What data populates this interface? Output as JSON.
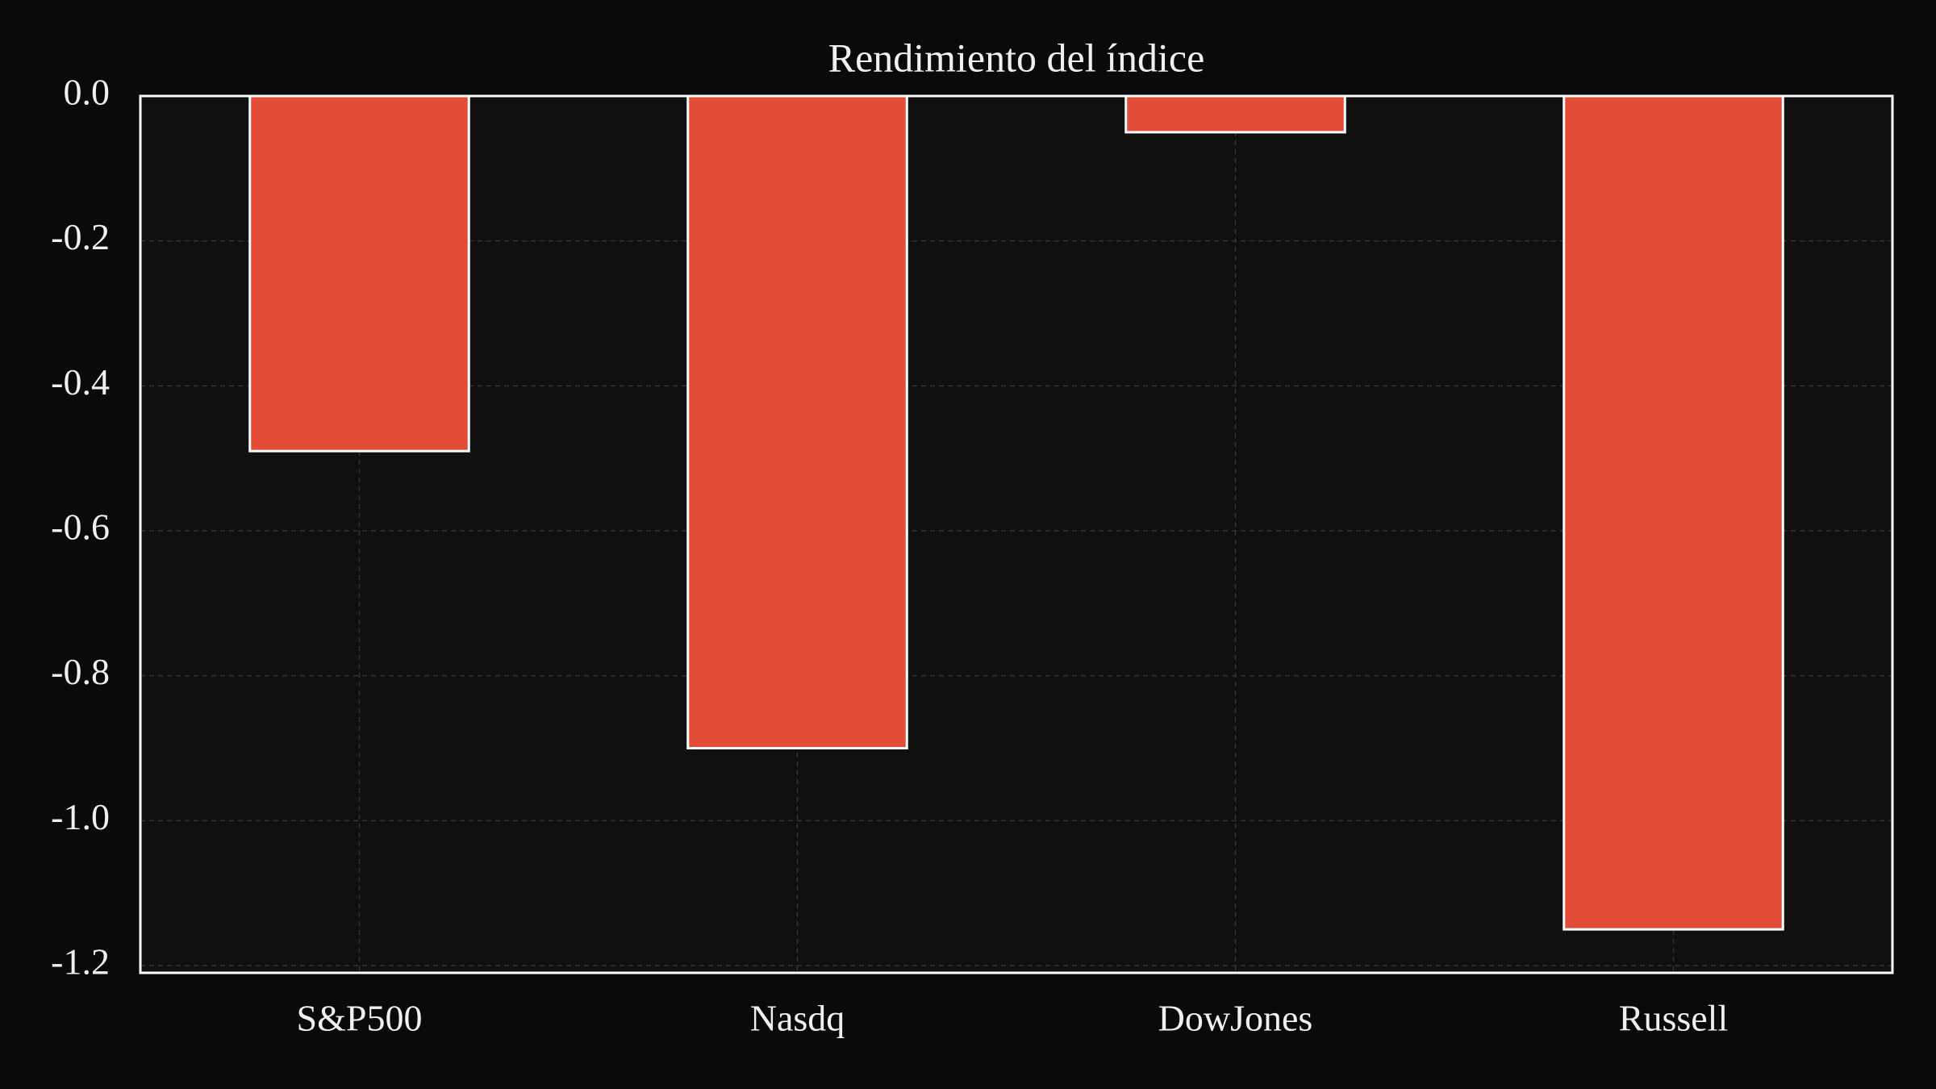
{
  "chart_data": {
    "type": "bar",
    "title": "Rendimiento del índice",
    "categories": [
      "S&P500",
      "Nasdq",
      "DowJones",
      "Russell"
    ],
    "values": [
      -0.49,
      -0.9,
      -0.05,
      -1.15
    ],
    "color": "#e34c36",
    "ylim": [
      -1.21,
      0
    ],
    "yticks": [
      {
        "value": 0,
        "label": "0.0"
      },
      -0.2,
      -0.4,
      -0.6,
      -0.8,
      {
        "value": -1,
        "label": "-1.0"
      },
      -1.2
    ],
    "grid": true
  }
}
